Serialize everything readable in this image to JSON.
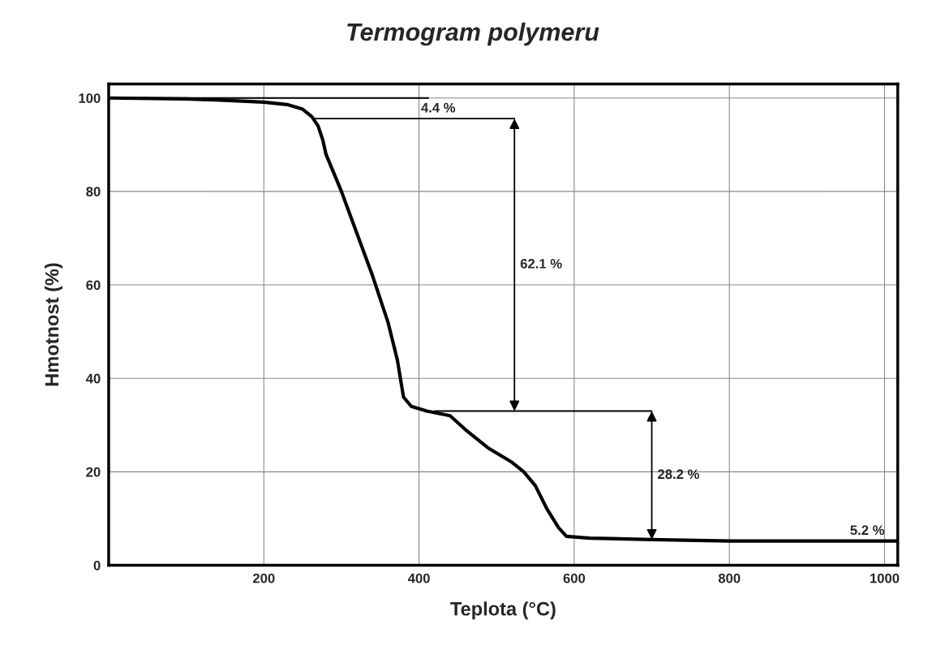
{
  "chart_data": {
    "type": "line",
    "title": "Termogram polymeru",
    "xlabel": "Teplota (°C)",
    "ylabel": "Hmotnost (%)",
    "xlim": [
      0,
      1017
    ],
    "ylim": [
      0,
      103
    ],
    "xticks": [
      200,
      400,
      600,
      800,
      1000
    ],
    "yticks": [
      0,
      20,
      40,
      60,
      80,
      100
    ],
    "grid": true,
    "marker": "none",
    "line_style": "solid",
    "series": [
      {
        "color": "#000000",
        "x": [
          0,
          100,
          150,
          200,
          230,
          250,
          262,
          270,
          276,
          280,
          300,
          320,
          340,
          360,
          372,
          380,
          390,
          410,
          440,
          460,
          490,
          520,
          535,
          550,
          565,
          580,
          590,
          620,
          700,
          800,
          1017
        ],
        "values": [
          100,
          99.8,
          99.5,
          99.1,
          98.6,
          97.6,
          96,
          94,
          91,
          88,
          80,
          71,
          62,
          52,
          44,
          36,
          34,
          33,
          32,
          29,
          25,
          22,
          20,
          17,
          12,
          8,
          6.2,
          5.8,
          5.5,
          5.2,
          5.2
        ]
      },
      {
        "type": "line",
        "color": "#000000",
        "x": [
          0,
          412
        ],
        "values": [
          100,
          100
        ]
      },
      {
        "type": "line",
        "color": "#000000",
        "x": [
          265,
          523
        ],
        "values": [
          95.6,
          95.6
        ]
      },
      {
        "type": "line",
        "color": "#000000",
        "x": [
          420,
          700
        ],
        "values": [
          33,
          33
        ]
      }
    ],
    "annotations": [
      {
        "text": "4.4 %",
        "x": 447,
        "y": 95.6
      },
      "62.1 %",
      "28.2 %",
      {
        "text": "5.2 %",
        "x": 1000,
        "y": 5.2
      }
    ]
  }
}
